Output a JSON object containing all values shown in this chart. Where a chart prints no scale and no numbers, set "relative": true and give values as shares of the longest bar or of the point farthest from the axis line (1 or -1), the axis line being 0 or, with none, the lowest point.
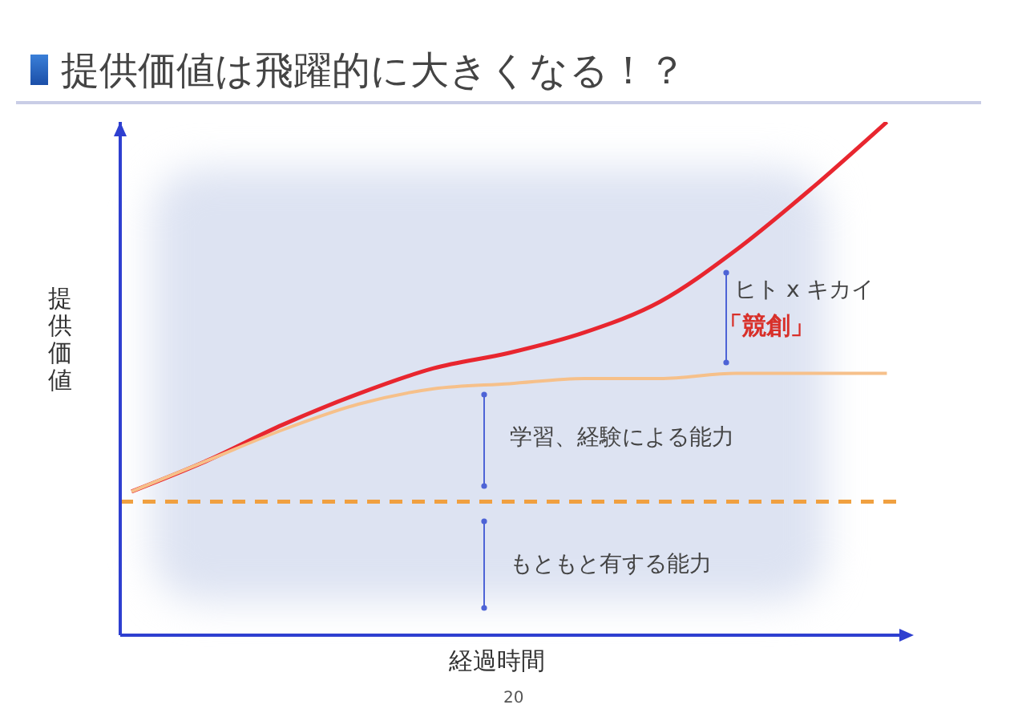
{
  "chart_data": {
    "type": "line",
    "title": "提供価値は飛躍的に大きくなる！？",
    "xlabel": "経過時間",
    "ylabel": "提供価値",
    "relative": true,
    "categories": [
      null,
      null,
      null,
      null,
      null,
      null,
      null,
      null,
      null,
      null,
      null
    ],
    "series": [
      {
        "color": "#e8262f",
        "values": [
          0.28,
          0.34,
          0.41,
          0.47,
          0.52,
          0.55,
          0.59,
          0.65,
          0.75,
          0.87,
          1.0
        ]
      },
      {
        "color": "#f6c08a",
        "values": [
          0.28,
          0.34,
          0.4,
          0.45,
          0.48,
          0.49,
          0.5,
          0.5,
          0.51,
          0.51,
          0.51
        ]
      }
    ],
    "ref_lines": [
      {
        "axis": "y",
        "value": 0.26,
        "color": "#f0a040",
        "line_style": "dashed"
      }
    ],
    "annotations": [
      "ヒト x キカイ",
      "「競創」",
      "学習、経験による能力",
      "もともと有する能力",
      "20"
    ],
    "grid": false,
    "legend": false,
    "marker": "none",
    "line_style": "solid"
  }
}
